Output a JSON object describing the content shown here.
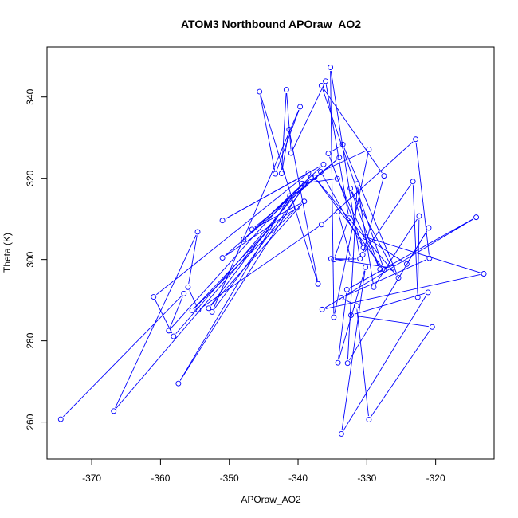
{
  "chart_data": {
    "type": "line",
    "title": "ATOM3 Northbound APOraw_AO2",
    "xlabel": "APOraw_AO2",
    "ylabel": "Theta (K)",
    "xlim": [
      -376.5,
      -311.5
    ],
    "ylim": [
      250.9,
      352.3
    ],
    "xticks": [
      -370,
      -360,
      -350,
      -340,
      -330,
      -320
    ],
    "yticks": [
      260,
      280,
      300,
      320,
      340
    ],
    "xtick_labels": [
      "-370",
      "-360",
      "-350",
      "-340",
      "-330",
      "-320"
    ],
    "ytick_labels": [
      "260",
      "280",
      "300",
      "320",
      "340"
    ],
    "grid": false,
    "series_color": "#0000ff",
    "marker": "open-circle",
    "series": [
      {
        "name": "",
        "points": [
          [
            -374.5,
            260.7
          ],
          [
            -356.6,
            291.6
          ],
          [
            -358.8,
            282.5
          ],
          [
            -341.2,
            315.6
          ],
          [
            -357.4,
            269.5
          ],
          [
            -339.1,
            318.3
          ],
          [
            -358.1,
            281.1
          ],
          [
            -361.0,
            290.8
          ],
          [
            -338.5,
            321.3
          ],
          [
            -351.0,
            309.6
          ],
          [
            -336.3,
            323.4
          ],
          [
            -347.9,
            305.0
          ],
          [
            -338.1,
            320.2
          ],
          [
            -352.5,
            287.1
          ],
          [
            -339.7,
            337.6
          ],
          [
            -343.3,
            321.1
          ],
          [
            -345.6,
            341.3
          ],
          [
            -337.1,
            294.0
          ],
          [
            -341.3,
            332.0
          ],
          [
            -342.4,
            321.2
          ],
          [
            -341.7,
            341.8
          ],
          [
            -341.0,
            326.2
          ],
          [
            -336.0,
            343.9
          ],
          [
            -332.6,
            310.2
          ],
          [
            -334.8,
            300.0
          ],
          [
            -331.0,
            300.2
          ],
          [
            -335.3,
            347.3
          ],
          [
            -334.8,
            285.8
          ],
          [
            -329.7,
            327.1
          ],
          [
            -336.7,
            321.6
          ],
          [
            -330.5,
            302.9
          ],
          [
            -335.6,
            326.1
          ],
          [
            -333.5,
            328.3
          ],
          [
            -325.4,
            295.5
          ],
          [
            -337.6,
            320.2
          ],
          [
            -327.5,
            297.5
          ],
          [
            -336.6,
            342.8
          ],
          [
            -327.5,
            320.6
          ],
          [
            -330.6,
            301.2
          ],
          [
            -323.3,
            319.2
          ],
          [
            -322.6,
            290.7
          ],
          [
            -322.4,
            310.7
          ],
          [
            -329.0,
            293.2
          ],
          [
            -331.4,
            318.6
          ],
          [
            -332.8,
            274.5
          ],
          [
            -321.0,
            307.8
          ],
          [
            -324.2,
            298.9
          ],
          [
            -330.2,
            305.5
          ],
          [
            -313.0,
            296.5
          ],
          [
            -336.5,
            287.7
          ],
          [
            -314.1,
            310.4
          ],
          [
            -332.9,
            292.6
          ],
          [
            -334.2,
            274.6
          ],
          [
            -330.2,
            298.1
          ],
          [
            -333.7,
            257.1
          ],
          [
            -321.1,
            291.9
          ],
          [
            -332.3,
            286.3
          ],
          [
            -320.5,
            283.4
          ],
          [
            -329.7,
            260.6
          ],
          [
            -331.5,
            288.6
          ],
          [
            -333.7,
            290.6
          ],
          [
            -320.9,
            300.3
          ],
          [
            -322.9,
            329.6
          ],
          [
            -336.6,
            308.6
          ],
          [
            -354.5,
            287.6
          ],
          [
            -356.0,
            293.2
          ],
          [
            -354.6,
            306.8
          ],
          [
            -366.8,
            262.7
          ],
          [
            -344.0,
            307.9
          ],
          [
            -355.4,
            287.5
          ],
          [
            -340.2,
            312.7
          ],
          [
            -351.0,
            300.4
          ],
          [
            -334.0,
            325.1
          ],
          [
            -346.7,
            307.4
          ],
          [
            -339.1,
            314.3
          ],
          [
            -353.0,
            288.0
          ],
          [
            -339.4,
            318.7
          ],
          [
            -334.3,
            319.9
          ],
          [
            -328.1,
            297.6
          ],
          [
            -332.4,
            317.5
          ],
          [
            -326.3,
            297.9
          ],
          [
            -335.2,
            300.2
          ],
          [
            -332.3,
            300.1
          ],
          [
            -334.2,
            311.8
          ]
        ]
      }
    ]
  }
}
